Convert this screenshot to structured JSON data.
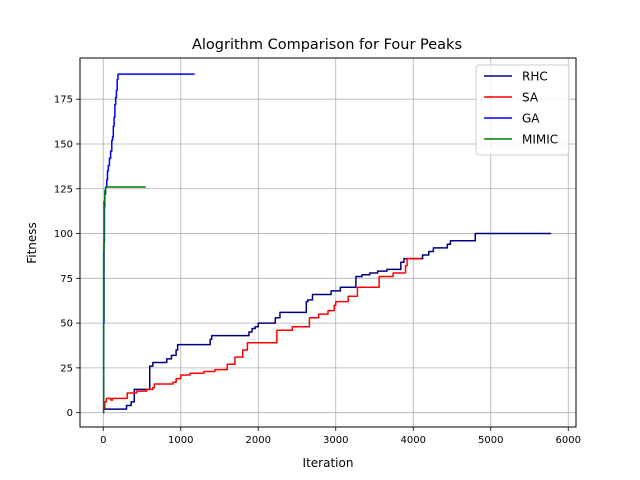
{
  "chart_data": {
    "type": "line",
    "title": "Alogrithm Comparison for Four Peaks",
    "xlabel": "Iteration",
    "ylabel": "Fitness",
    "xlim": [
      -300,
      6100
    ],
    "ylim": [
      -8,
      198
    ],
    "xticks": [
      0,
      1000,
      2000,
      3000,
      4000,
      5000,
      6000
    ],
    "yticks": [
      0,
      25,
      50,
      75,
      100,
      125,
      150,
      175
    ],
    "grid": true,
    "legend_position": "top-right",
    "series": [
      {
        "name": "RHC",
        "color": "#000080",
        "step": true,
        "points": [
          [
            0,
            2
          ],
          [
            250,
            2
          ],
          [
            300,
            4
          ],
          [
            360,
            6
          ],
          [
            400,
            13
          ],
          [
            520,
            13
          ],
          [
            600,
            14
          ],
          [
            600,
            26
          ],
          [
            640,
            28
          ],
          [
            800,
            28
          ],
          [
            820,
            30
          ],
          [
            880,
            32
          ],
          [
            940,
            35
          ],
          [
            960,
            38
          ],
          [
            1340,
            38
          ],
          [
            1380,
            41
          ],
          [
            1400,
            43
          ],
          [
            1860,
            43
          ],
          [
            1880,
            45
          ],
          [
            1920,
            47
          ],
          [
            1960,
            48
          ],
          [
            2000,
            50
          ],
          [
            2200,
            50
          ],
          [
            2220,
            53
          ],
          [
            2280,
            56
          ],
          [
            2600,
            56
          ],
          [
            2620,
            62
          ],
          [
            2640,
            63
          ],
          [
            2700,
            66
          ],
          [
            2900,
            66
          ],
          [
            2940,
            68
          ],
          [
            3060,
            70
          ],
          [
            3220,
            70
          ],
          [
            3260,
            76
          ],
          [
            3340,
            77
          ],
          [
            3440,
            78
          ],
          [
            3540,
            79
          ],
          [
            3660,
            80
          ],
          [
            3800,
            80
          ],
          [
            3840,
            84
          ],
          [
            3880,
            86
          ],
          [
            4100,
            86
          ],
          [
            4120,
            88
          ],
          [
            4200,
            90
          ],
          [
            4260,
            92
          ],
          [
            4440,
            94
          ],
          [
            4480,
            96
          ],
          [
            4780,
            96
          ],
          [
            4800,
            100
          ],
          [
            5780,
            100
          ]
        ]
      },
      {
        "name": "SA",
        "color": "#ff0000",
        "step": true,
        "points": [
          [
            0,
            2
          ],
          [
            20,
            6
          ],
          [
            40,
            8
          ],
          [
            100,
            7
          ],
          [
            120,
            8
          ],
          [
            300,
            8
          ],
          [
            310,
            11
          ],
          [
            400,
            11
          ],
          [
            430,
            12
          ],
          [
            560,
            13
          ],
          [
            640,
            14
          ],
          [
            660,
            16
          ],
          [
            900,
            17
          ],
          [
            940,
            19
          ],
          [
            1000,
            21
          ],
          [
            1120,
            22
          ],
          [
            1300,
            23
          ],
          [
            1440,
            24
          ],
          [
            1600,
            27
          ],
          [
            1700,
            31
          ],
          [
            1800,
            35
          ],
          [
            1860,
            39
          ],
          [
            2220,
            39
          ],
          [
            2240,
            46
          ],
          [
            2440,
            48
          ],
          [
            2620,
            48
          ],
          [
            2660,
            53
          ],
          [
            2780,
            55
          ],
          [
            2900,
            57
          ],
          [
            2980,
            60
          ],
          [
            3000,
            62
          ],
          [
            3140,
            62
          ],
          [
            3160,
            65
          ],
          [
            3280,
            70
          ],
          [
            3520,
            70
          ],
          [
            3560,
            76
          ],
          [
            3740,
            78
          ],
          [
            3900,
            82
          ],
          [
            3920,
            86
          ],
          [
            4100,
            86
          ]
        ]
      },
      {
        "name": "GA",
        "color": "#0000ff",
        "step": true,
        "points": [
          [
            0,
            0
          ],
          [
            5,
            50
          ],
          [
            10,
            95
          ],
          [
            15,
            115
          ],
          [
            20,
            122
          ],
          [
            30,
            126
          ],
          [
            45,
            130
          ],
          [
            55,
            135
          ],
          [
            65,
            138
          ],
          [
            80,
            142
          ],
          [
            95,
            146
          ],
          [
            110,
            152
          ],
          [
            120,
            154
          ],
          [
            130,
            160
          ],
          [
            140,
            165
          ],
          [
            150,
            172
          ],
          [
            160,
            176
          ],
          [
            170,
            180
          ],
          [
            180,
            186
          ],
          [
            190,
            189
          ],
          [
            1180,
            189
          ]
        ]
      },
      {
        "name": "MIMIC",
        "color": "#008000",
        "step": true,
        "points": [
          [
            0,
            0
          ],
          [
            5,
            90
          ],
          [
            10,
            118
          ],
          [
            20,
            124
          ],
          [
            30,
            126
          ],
          [
            550,
            126
          ]
        ]
      }
    ]
  }
}
